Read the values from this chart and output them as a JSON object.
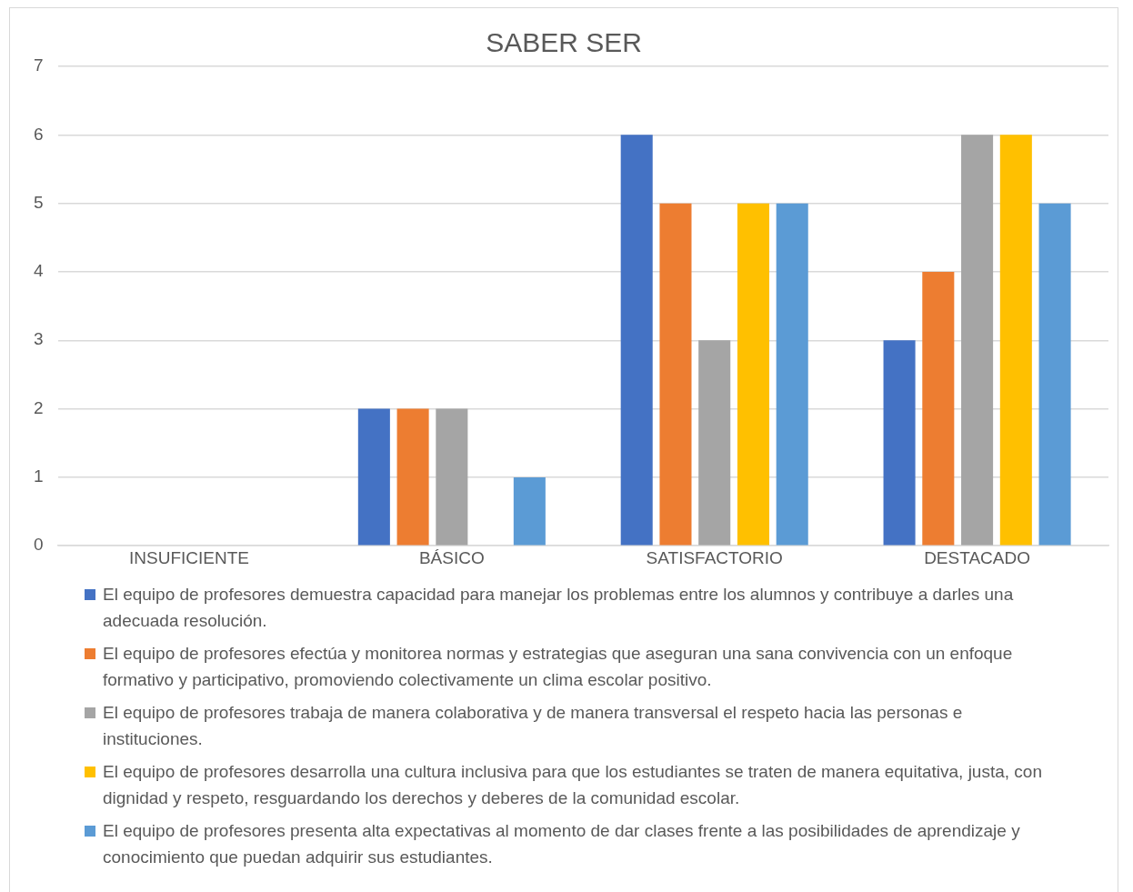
{
  "chart_data": {
    "type": "bar",
    "title": "SABER SER",
    "categories": [
      "INSUFICIENTE",
      "BÁSICO",
      "SATISFACTORIO",
      "DESTACADO"
    ],
    "series": [
      {
        "name": "El equipo de profesores demuestra capacidad para manejar los problemas entre los alumnos y contribuye a darles una adecuada resolución.",
        "color": "#4472c4",
        "values": [
          0,
          2,
          6,
          3
        ]
      },
      {
        "name": "El equipo de profesores efectúa y monitorea normas y estrategias que aseguran una sana convivencia con un enfoque formativo y participativo, promoviendo colectivamente un clima escolar positivo.",
        "color": "#ed7d31",
        "values": [
          0,
          2,
          5,
          4
        ]
      },
      {
        "name": "El equipo de profesores trabaja de manera colaborativa y de manera transversal el respeto hacia las personas e instituciones.",
        "color": "#a5a5a5",
        "values": [
          0,
          2,
          3,
          6
        ]
      },
      {
        "name": "El equipo de profesores desarrolla una cultura inclusiva para que los estudiantes se traten de manera equitativa, justa, con dignidad y respeto, resguardando los derechos y deberes de la comunidad escolar.",
        "color": "#ffc000",
        "values": [
          0,
          0,
          5,
          6
        ]
      },
      {
        "name": "El equipo de profesores presenta alta expectativas al momento de dar clases frente a las posibilidades de aprendizaje y conocimiento que puedan adquirir sus estudiantes.",
        "color": "#5b9bd5",
        "values": [
          0,
          1,
          5,
          5
        ]
      }
    ],
    "ylim": [
      0,
      7
    ],
    "yticks": [
      0,
      1,
      2,
      3,
      4,
      5,
      6,
      7
    ],
    "grid": "y",
    "legend": "bottom"
  }
}
